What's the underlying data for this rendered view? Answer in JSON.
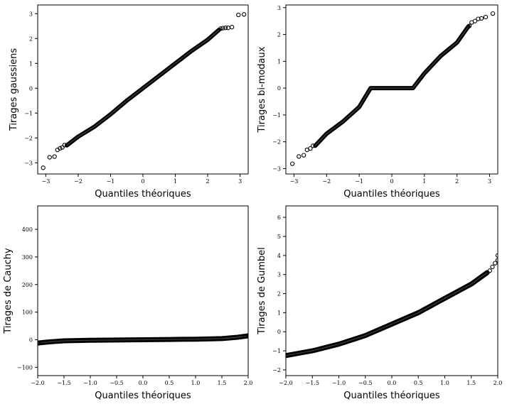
{
  "chart_data": [
    {
      "type": "scatter",
      "xlabel": "Quantiles théoriques",
      "ylabel": "Tirages gaussiens",
      "xlim": [
        -3.25,
        3.25
      ],
      "ylim": [
        -3.45,
        3.35
      ],
      "xticks": [
        "−3",
        "−2",
        "−1",
        "0",
        "1",
        "2",
        "3"
      ],
      "yticks": [
        "−3",
        "−2",
        "−1",
        "0",
        "1",
        "2",
        "3"
      ],
      "body": {
        "x": [
          -2.35,
          -2.0,
          -1.5,
          -1.0,
          -0.5,
          0.0,
          0.5,
          1.0,
          1.5,
          2.0,
          2.35
        ],
        "y": [
          -2.3,
          -1.95,
          -1.55,
          -1.05,
          -0.5,
          0.0,
          0.5,
          1.0,
          1.5,
          1.95,
          2.35
        ]
      },
      "points": [
        [
          -3.08,
          -3.2
        ],
        [
          -2.88,
          -2.78
        ],
        [
          -2.73,
          -2.75
        ],
        [
          -2.64,
          -2.48
        ],
        [
          -2.56,
          -2.42
        ],
        [
          -2.49,
          -2.38
        ],
        [
          -2.42,
          -2.29
        ],
        [
          2.4,
          2.4
        ],
        [
          2.47,
          2.42
        ],
        [
          2.55,
          2.43
        ],
        [
          2.63,
          2.43
        ],
        [
          2.75,
          2.46
        ],
        [
          2.95,
          2.95
        ],
        [
          3.12,
          2.97
        ]
      ]
    },
    {
      "type": "scatter",
      "xlabel": "Quantiles théoriques",
      "ylabel": "Tirages bi-modaux",
      "xlim": [
        -3.25,
        3.25
      ],
      "ylim": [
        -3.2,
        3.1
      ],
      "xticks": [
        "−3",
        "−2",
        "−1",
        "0",
        "1",
        "2",
        "3"
      ],
      "yticks": [
        "−3",
        "−2",
        "−1",
        "0",
        "1",
        "2",
        "3"
      ],
      "body": {
        "x": [
          -2.35,
          -2.0,
          -1.5,
          -1.0,
          -0.65,
          0.0,
          0.65,
          1.0,
          1.5,
          2.0,
          2.35
        ],
        "y": [
          -2.15,
          -1.7,
          -1.25,
          -0.7,
          0.0,
          0.0,
          0.0,
          0.55,
          1.2,
          1.7,
          2.3
        ]
      },
      "points": [
        [
          -3.05,
          -2.82
        ],
        [
          -2.85,
          -2.55
        ],
        [
          -2.7,
          -2.5
        ],
        [
          -2.6,
          -2.3
        ],
        [
          -2.5,
          -2.25
        ],
        [
          -2.42,
          -2.15
        ],
        [
          2.38,
          2.32
        ],
        [
          2.45,
          2.45
        ],
        [
          2.55,
          2.5
        ],
        [
          2.65,
          2.58
        ],
        [
          2.75,
          2.6
        ],
        [
          2.88,
          2.65
        ],
        [
          3.1,
          2.78
        ]
      ]
    },
    {
      "type": "scatter",
      "xlabel": "Quantiles théoriques",
      "ylabel": "Tirages de Cauchy",
      "xlim": [
        -2.0,
        2.0
      ],
      "ylim": [
        -130,
        485
      ],
      "xticks": [
        "−2.0",
        "−1.5",
        "−1.0",
        "−0.5",
        "0.0",
        "0.5",
        "1.0",
        "1.5",
        "2.0"
      ],
      "yticks": [
        "−100",
        "0",
        "100",
        "200",
        "300",
        "400"
      ],
      "body": {
        "x": [
          -2.0,
          -1.8,
          -1.5,
          -1.0,
          -0.5,
          0.0,
          0.5,
          1.0,
          1.5,
          1.8,
          2.0
        ],
        "y": [
          -12,
          -8,
          -4,
          -2,
          -1,
          0,
          1,
          2,
          4,
          9,
          14
        ]
      },
      "points": [
        [
          -1.98,
          -13
        ],
        [
          -1.93,
          -11
        ],
        [
          1.95,
          12
        ],
        [
          2.0,
          15
        ]
      ]
    },
    {
      "type": "scatter",
      "xlabel": "Quantiles théoriques",
      "ylabel": "Tirages de Gumbel",
      "xlim": [
        -2.0,
        2.0
      ],
      "ylim": [
        -2.3,
        6.6
      ],
      "xticks": [
        "−2.0",
        "−1.5",
        "−1.0",
        "−0.5",
        "0.0",
        "0.5",
        "1.0",
        "1.5",
        "2.0"
      ],
      "yticks": [
        "−2",
        "−1",
        "0",
        "1",
        "2",
        "3",
        "4",
        "5",
        "6"
      ],
      "body": {
        "x": [
          -2.0,
          -1.5,
          -1.0,
          -0.5,
          0.0,
          0.5,
          1.0,
          1.5,
          1.8
        ],
        "y": [
          -1.25,
          -1.0,
          -0.65,
          -0.2,
          0.4,
          1.0,
          1.75,
          2.5,
          3.1
        ]
      },
      "points": [
        [
          1.85,
          3.2
        ],
        [
          1.9,
          3.4
        ],
        [
          1.95,
          3.6
        ],
        [
          2.0,
          3.75
        ],
        [
          2.0,
          4.0
        ]
      ]
    }
  ]
}
